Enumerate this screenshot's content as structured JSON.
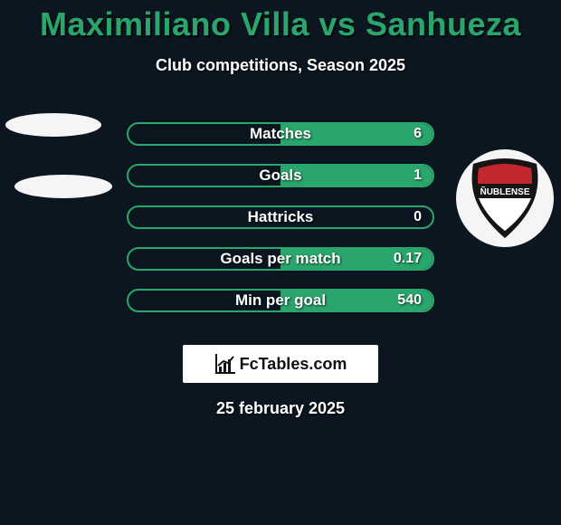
{
  "header": {
    "title": "Maximiliano Villa vs Sanhueza",
    "subtitle": "Club competitions, Season 2025",
    "title_color": "#2aa56b",
    "bg_color": "#0b1620"
  },
  "stats": {
    "pill_border_color": "#2aa56b",
    "fill_color": "#2aa56b",
    "rows": [
      {
        "label": "Matches",
        "left": "",
        "right": "6",
        "right_fill_pct": 100
      },
      {
        "label": "Goals",
        "left": "",
        "right": "1",
        "right_fill_pct": 100
      },
      {
        "label": "Hattricks",
        "left": "",
        "right": "0",
        "right_fill_pct": 0
      },
      {
        "label": "Goals per match",
        "left": "",
        "right": "0.17",
        "right_fill_pct": 100
      },
      {
        "label": "Min per goal",
        "left": "",
        "right": "540",
        "right_fill_pct": 100
      }
    ]
  },
  "left_badges": {
    "oval_color": "#f5f5f5"
  },
  "right_badge": {
    "circle_color": "#f5f5f5",
    "shield_outer": "#151515",
    "shield_inner": "#c1272d",
    "text": "ÑUBLENSE",
    "text_color": "#ffffff"
  },
  "branding": {
    "text": "FcTables.com",
    "bar_color": "#ffffff",
    "text_color": "#111111"
  },
  "footer": {
    "date": "25 february 2025"
  }
}
